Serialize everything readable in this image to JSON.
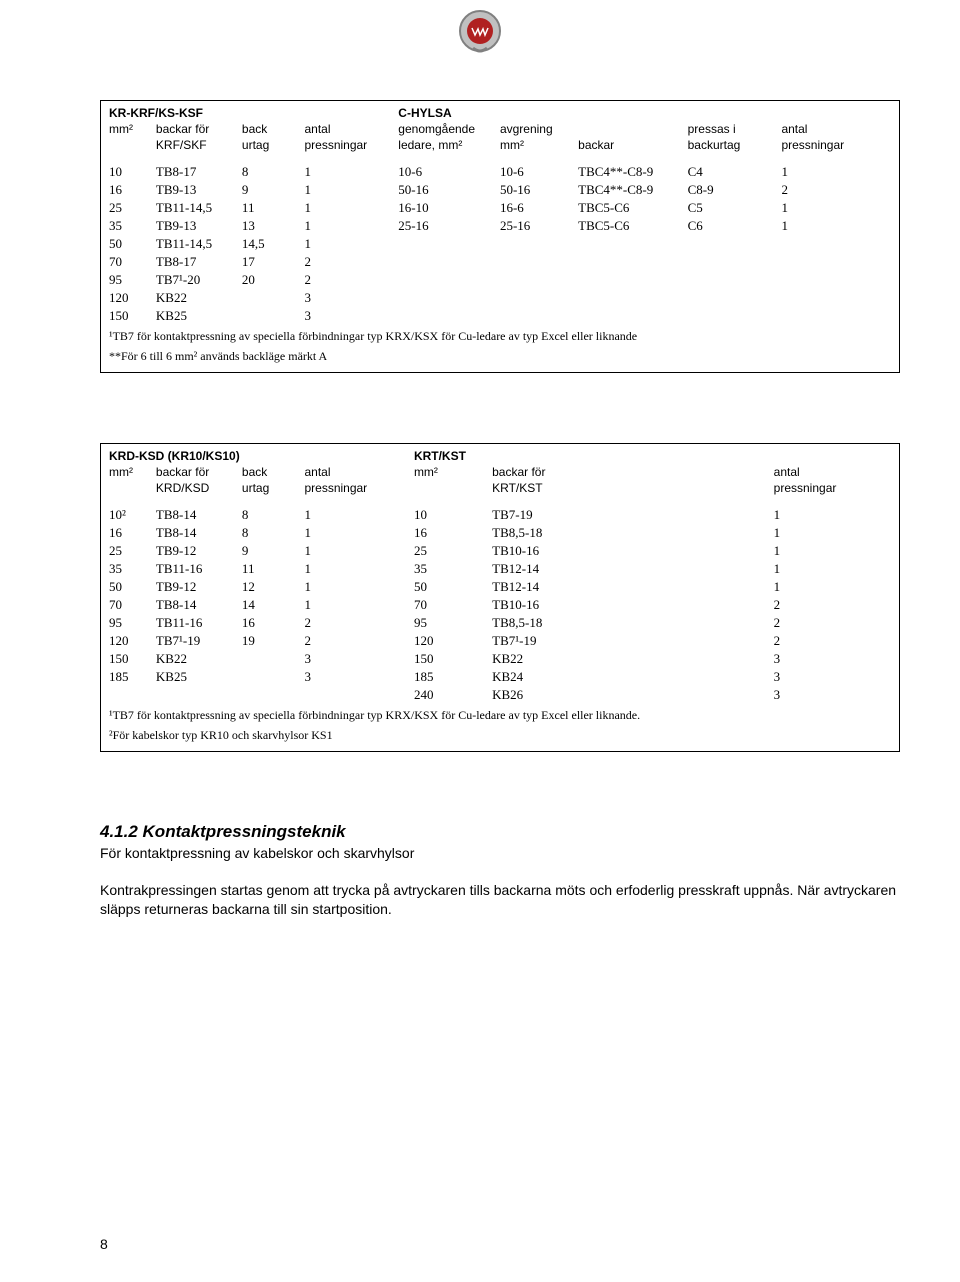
{
  "table1": {
    "left_title": "KR-KRF/KS-KSF",
    "right_title": "C-HYLSA",
    "headers_left": {
      "c1": "mm²",
      "c2a": "backar för",
      "c2b": "KRF/SKF",
      "c3a": "back",
      "c3b": "urtag",
      "c4a": "antal",
      "c4b": "pressningar"
    },
    "headers_right": {
      "c5a": "genomgående",
      "c5b": "ledare, mm²",
      "c6a": "avgrening",
      "c6b": "mm²",
      "c7": "backar",
      "c8a": "pressas i",
      "c8b": "backurtag",
      "c9a": "antal",
      "c9b": "pressningar"
    },
    "rows": [
      [
        "10",
        "TB8-17",
        "8",
        "1",
        "10-6",
        "10-6",
        "TBC4**-C8-9",
        "C4",
        "1"
      ],
      [
        "16",
        "TB9-13",
        "9",
        "1",
        "50-16",
        "50-16",
        "TBC4**-C8-9",
        "C8-9",
        "2"
      ],
      [
        "25",
        "TB11-14,5",
        "11",
        "1",
        "16-10",
        "16-6",
        "TBC5-C6",
        "C5",
        "1"
      ],
      [
        "35",
        "TB9-13",
        "13",
        "1",
        "25-16",
        "25-16",
        "TBC5-C6",
        "C6",
        "1"
      ],
      [
        "50",
        "TB11-14,5",
        "14,5",
        "1",
        "",
        "",
        "",
        "",
        ""
      ],
      [
        "70",
        "TB8-17",
        "17",
        "2",
        "",
        "",
        "",
        "",
        ""
      ],
      [
        "95",
        "TB7¹-20",
        "20",
        "2",
        "",
        "",
        "",
        "",
        ""
      ],
      [
        "120",
        "KB22",
        "",
        "3",
        "",
        "",
        "",
        "",
        ""
      ],
      [
        "150",
        "KB25",
        "",
        "3",
        "",
        "",
        "",
        "",
        ""
      ]
    ],
    "footnote1": "¹TB7 för kontaktpressning av speciella förbindningar typ KRX/KSX för Cu-ledare av typ Excel eller liknande",
    "footnote2": "**För 6 till 6 mm² används backläge märkt A"
  },
  "table2": {
    "left_title": "KRD-KSD (KR10/KS10)",
    "right_title": "KRT/KST",
    "headers_left": {
      "c1": "mm²",
      "c2a": "backar för",
      "c2b": "KRD/KSD",
      "c3a": "back",
      "c3b": "urtag",
      "c4a": "antal",
      "c4b": "pressningar"
    },
    "headers_right": {
      "c5": "mm²",
      "c6a": "backar för",
      "c6b": "KRT/KST",
      "c7a": "antal",
      "c7b": "pressningar"
    },
    "rows": [
      [
        "10²",
        "TB8-14",
        "8",
        "1",
        "10",
        "TB7-19",
        "1"
      ],
      [
        "16",
        "TB8-14",
        "8",
        "1",
        "16",
        "TB8,5-18",
        "1"
      ],
      [
        "25",
        "TB9-12",
        "9",
        "1",
        "25",
        "TB10-16",
        "1"
      ],
      [
        "35",
        "TB11-16",
        "11",
        "1",
        "35",
        "TB12-14",
        "1"
      ],
      [
        "50",
        "TB9-12",
        "12",
        "1",
        "50",
        "TB12-14",
        "1"
      ],
      [
        "70",
        "TB8-14",
        "14",
        "1",
        "70",
        "TB10-16",
        "2"
      ],
      [
        "95",
        "TB11-16",
        "16",
        "2",
        "95",
        "TB8,5-18",
        "2"
      ],
      [
        "120",
        "TB7¹-19",
        "19",
        "2",
        "120",
        "TB7¹-19",
        "2"
      ],
      [
        "150",
        "KB22",
        "",
        "3",
        "150",
        "KB22",
        "3"
      ],
      [
        "185",
        "KB25",
        "",
        "3",
        "185",
        "KB24",
        "3"
      ],
      [
        "",
        "",
        "",
        "",
        "240",
        "KB26",
        "3"
      ]
    ],
    "footnote1": "¹TB7 för kontaktpressning av speciella förbindningar typ KRX/KSX för Cu-ledare av typ Excel eller liknande.",
    "footnote2": "²För kabelskor typ KR10 och skarvhylsor KS1"
  },
  "section": {
    "heading": "4.1.2 Kontaktpressningsteknik",
    "p1": "För kontaktpressning av kabelskor och skarvhylsor",
    "p2": "Kontrakpressingen startas genom att trycka på avtryckaren tills backarna möts och erfoderlig presskraft uppnås. När avtryckaren släpps returneras backarna till sin startposition."
  },
  "page_number": "8"
}
